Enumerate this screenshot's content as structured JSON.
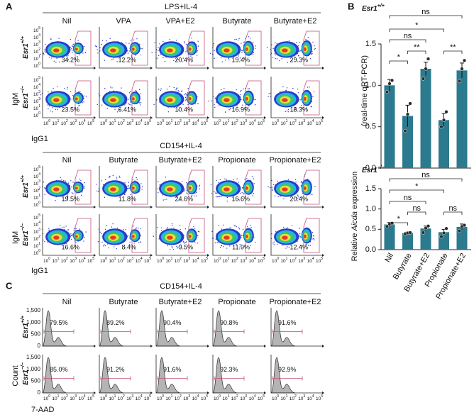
{
  "genotypes": [
    {
      "gene": "Esr1",
      "allele": "+/+"
    },
    {
      "gene": "Esr1",
      "allele": "−/−"
    }
  ],
  "flow_decades": {
    "base": "10",
    "exponents": [
      "0",
      "1",
      "2",
      "3",
      "4",
      "5"
    ]
  },
  "panel_a": {
    "label": "A",
    "x_label": "IgG1",
    "y_label": "IgM",
    "groups": [
      {
        "title": "LPS+IL-4",
        "columns": [
          "Nil",
          "VPA",
          "VPA+E2",
          "Butyrate",
          "Butyrate+E2"
        ],
        "percents": [
          [
            "34.2%",
            "12.2%",
            "20.4%",
            "19.4%",
            "29.3%"
          ],
          [
            "23.5%",
            "6.41%",
            "10.4%",
            "16.9%",
            "18.3%"
          ]
        ]
      },
      {
        "title": "CD154+IL-4",
        "columns": [
          "Nil",
          "Butyrate",
          "Butyrate+E2",
          "Propionate",
          "Propionate+E2"
        ],
        "percents": [
          [
            "19.5%",
            "11.8%",
            "24.6%",
            "16.6%",
            "20.4%"
          ],
          [
            "16.6%",
            "8.4%",
            "9.5%",
            "11.9%",
            "12.4%"
          ]
        ]
      }
    ]
  },
  "panel_c": {
    "label": "C",
    "title": "CD154+IL-4",
    "x_label": "7-AAD",
    "y_label": "Count",
    "columns": [
      "Nil",
      "Butyrate",
      "Butyrate+E2",
      "Propionate",
      "Propionate+E2"
    ],
    "count_ticks": [
      "1,500",
      "1,000",
      "500",
      "0"
    ],
    "percents": [
      [
        "79.5%",
        "89.2%",
        "90.4%",
        "90.8%",
        "91.6%"
      ],
      [
        "85.0%",
        "91.2%",
        "91.6%",
        "92.3%",
        "92.9%"
      ]
    ]
  },
  "panel_b": {
    "label": "B",
    "y_label": {
      "prefix": "Relative",
      "gene": "Aicda",
      "suffix": "expression",
      "method": "(real-time qRT-PCR)"
    }
  },
  "chart_data": [
    {
      "type": "bar",
      "title": {
        "gene": "Esr1",
        "allele": "+/+"
      },
      "color": "#2b7a8e",
      "values": [
        1.0,
        0.63,
        1.2,
        0.58,
        1.18
      ],
      "errors": [
        0.07,
        0.13,
        0.08,
        0.08,
        0.09
      ],
      "points": [
        [
          0.92,
          1.02,
          1.06
        ],
        [
          0.45,
          0.65,
          0.78
        ],
        [
          1.08,
          1.2,
          1.32
        ],
        [
          0.5,
          0.58,
          0.68
        ],
        [
          1.05,
          1.2,
          1.3
        ]
      ],
      "ylim": [
        0,
        1.5
      ],
      "yticks": [
        {
          "value": 0,
          "label": "0.0"
        },
        0.5,
        {
          "value": 1,
          "label": "1.0"
        },
        1.5
      ],
      "significance": [
        {
          "from": "Nil",
          "to": "Propionate+E2",
          "label": "ns"
        },
        {
          "from": "Nil",
          "to": "Propionate",
          "label": "*"
        },
        {
          "from": "Nil",
          "to": "Butyrate+E2",
          "label": "ns"
        },
        {
          "from": "Butyrate",
          "to": "Butyrate+E2",
          "label": "**"
        },
        {
          "from": "Propionate",
          "to": "Propionate+E2",
          "label": "**"
        },
        {
          "from": "Nil",
          "to": "Butyrate",
          "label": "*"
        }
      ]
    },
    {
      "type": "bar",
      "title": {
        "gene": "Esr1",
        "allele": "−/−"
      },
      "color": "#2b7a8e",
      "categories": [
        "Nil",
        "Butyrate",
        "Butyrate+E2",
        "Propionate",
        "Propionate+E2"
      ],
      "values": [
        0.62,
        0.41,
        0.52,
        0.43,
        0.56
      ],
      "errors": [
        0.05,
        0.02,
        0.06,
        0.07,
        0.07
      ],
      "points": [
        [
          0.57,
          0.63,
          0.65
        ],
        [
          0.39,
          0.41,
          0.42
        ],
        [
          0.42,
          0.53,
          0.58
        ],
        [
          0.32,
          0.41,
          0.52
        ],
        [
          0.46,
          0.57,
          0.6
        ]
      ],
      "ylim": [
        0,
        1.5
      ],
      "yticks": [
        {
          "value": 0,
          "label": "0.0"
        },
        0.5,
        {
          "value": 1,
          "label": "1.0"
        },
        1.5
      ],
      "significance": [
        {
          "from": "Nil",
          "to": "Propionate+E2",
          "label": "ns"
        },
        {
          "from": "Nil",
          "to": "Propionate",
          "label": "*"
        },
        {
          "from": "Nil",
          "to": "Butyrate+E2",
          "label": "ns"
        },
        {
          "from": "Butyrate",
          "to": "Butyrate+E2",
          "label": "ns"
        },
        {
          "from": "Propionate",
          "to": "Propionate+E2",
          "label": "ns"
        },
        {
          "from": "Nil",
          "to": "Butyrate",
          "label": "*"
        }
      ]
    }
  ]
}
